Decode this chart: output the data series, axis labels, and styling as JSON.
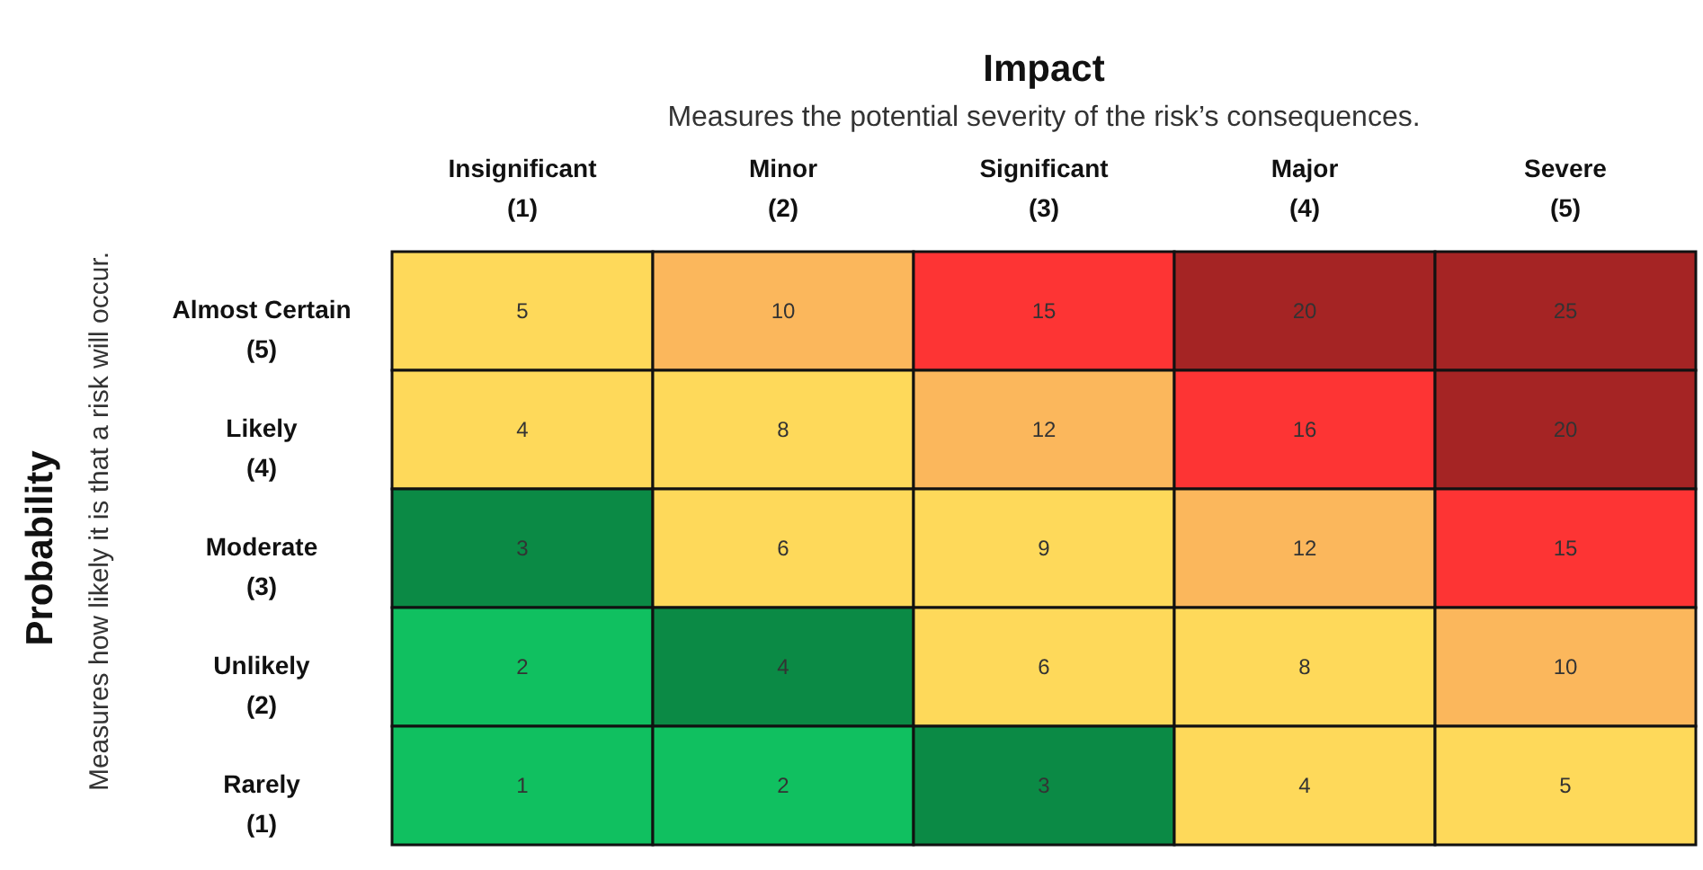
{
  "chart_data": {
    "type": "heatmap",
    "title": "Impact",
    "subtitle": "Measures the potential severity of the risk’s consequences.",
    "ylabel": "Probability",
    "annotations": [
      "Measures how likely it is that a risk will occur."
    ],
    "categories": [
      "Insignificant\n(1)",
      "Minor\n(2)",
      "Significant\n(3)",
      "Major\n(4)",
      "Severe\n(5)"
    ],
    "y_categories": [
      "Almost Certain\n(5)",
      "Likely\n(4)",
      "Moderate\n(3)",
      "Unlikely\n(2)",
      "Rarely\n(1)"
    ],
    "data_labels": true,
    "cells": [
      [
        5,
        10,
        15,
        20,
        25
      ],
      [
        4,
        8,
        12,
        16,
        20
      ],
      [
        3,
        6,
        9,
        12,
        15
      ],
      [
        2,
        4,
        6,
        8,
        10
      ],
      [
        1,
        2,
        3,
        4,
        5
      ]
    ],
    "colors": [
      [
        "#fed95a",
        "#fbb75c",
        "#fd3434",
        "#a52424",
        "#a52424"
      ],
      [
        "#fed95a",
        "#fed95a",
        "#fbb75c",
        "#fd3434",
        "#a52424"
      ],
      [
        "#0b8a45",
        "#fed95a",
        "#fed95a",
        "#fbb75c",
        "#fd3434"
      ],
      [
        "#10c060",
        "#0b8a45",
        "#fed95a",
        "#fed95a",
        "#fbb75c"
      ],
      [
        "#10c060",
        "#10c060",
        "#0b8a45",
        "#fed95a",
        "#fed95a"
      ]
    ]
  }
}
